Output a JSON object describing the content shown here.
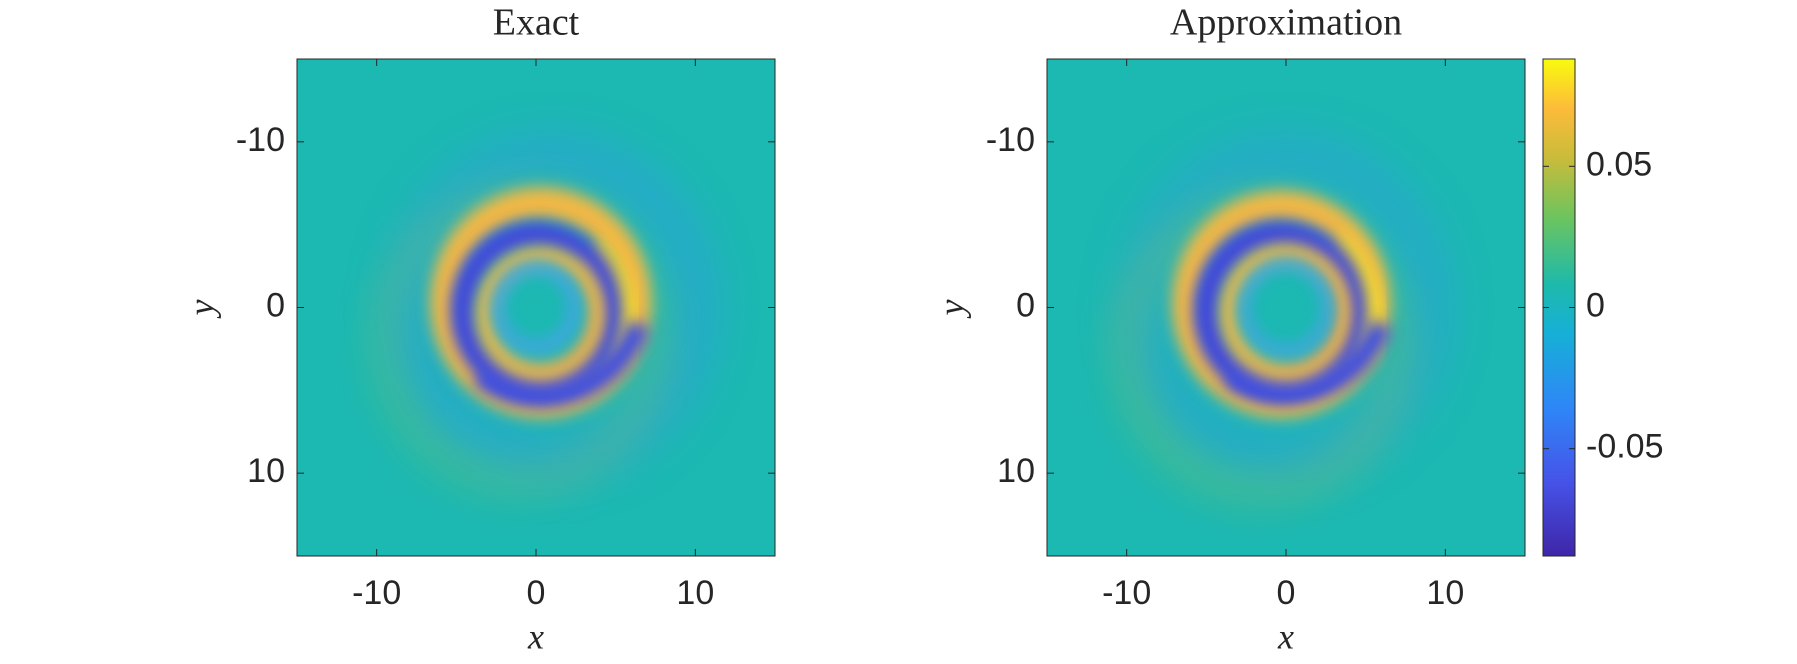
{
  "chart_data": [
    {
      "type": "heatmap",
      "title": "Exact",
      "x_label": "x",
      "y_label": "y",
      "xlim": [
        -15,
        15
      ],
      "ylim": [
        -15,
        15
      ],
      "y_reversed": true,
      "xticks": [
        -10,
        0,
        10
      ],
      "yticks": [
        -10,
        0,
        10
      ]
    },
    {
      "type": "heatmap",
      "title": "Approximation",
      "x_label": "x",
      "y_label": "y",
      "xlim": [
        -15,
        15
      ],
      "ylim": [
        -15,
        15
      ],
      "y_reversed": true,
      "xticks": [
        -10,
        0,
        10
      ],
      "yticks": [
        -10,
        0,
        10
      ],
      "colorbar": {
        "clim": [
          -0.088,
          0.088
        ],
        "ticks": [
          -0.05,
          0,
          0.05
        ]
      }
    }
  ]
}
